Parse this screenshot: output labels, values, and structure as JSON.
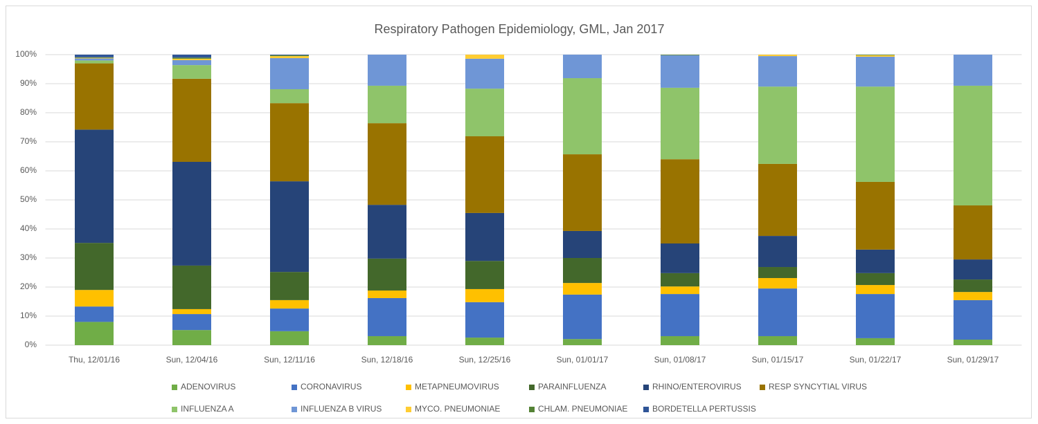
{
  "chart_data": {
    "type": "stacked_bar_100",
    "title": "Respiratory Pathogen Epidemiology, GML, Jan 2017",
    "categories": [
      "Thu, 12/01/16",
      "Sun, 12/04/16",
      "Sun, 12/11/16",
      "Sun, 12/18/16",
      "Sun, 12/25/16",
      "Sun, 01/01/17",
      "Sun, 01/08/17",
      "Sun, 01/15/17",
      "Sun, 01/22/17",
      "Sun, 01/29/17"
    ],
    "series": [
      {
        "name": "ADENOVIRUS",
        "color": "#70ad47",
        "values": [
          8,
          5.2,
          4.8,
          3.1,
          2.6,
          2.1,
          3.1,
          3.1,
          2.4,
          1.9
        ]
      },
      {
        "name": "CORONAVIRUS",
        "color": "#4472c4",
        "values": [
          5.3,
          5.5,
          7.8,
          13.1,
          12.2,
          15.3,
          14.5,
          16.4,
          15.2,
          13.6
        ]
      },
      {
        "name": "METAPNEUMOVIRUS",
        "color": "#ffc000",
        "values": [
          5.7,
          1.7,
          2.9,
          2.6,
          4.5,
          4,
          2.6,
          3.6,
          3.1,
          2.8
        ]
      },
      {
        "name": "PARAINFLUENZA",
        "color": "#43682b",
        "values": [
          16.2,
          15,
          9.7,
          11,
          9.7,
          8.6,
          4.6,
          3.8,
          4.1,
          4.3
        ]
      },
      {
        "name": "RHINO/ENTEROVIRUS",
        "color": "#264478",
        "values": [
          39,
          35.7,
          31.2,
          18.5,
          16.5,
          9.3,
          10.2,
          10.7,
          8.1,
          6.9
        ]
      },
      {
        "name": "RESP SYNCYTIAL VIRUS",
        "color": "#997300",
        "values": [
          22.8,
          28.6,
          26.9,
          28.1,
          26.4,
          26.4,
          29,
          24.8,
          23.3,
          18.6
        ]
      },
      {
        "name": "INFLUENZA A",
        "color": "#8fc46a",
        "values": [
          1,
          4.7,
          4.8,
          12.9,
          16.4,
          26.2,
          24.6,
          26.6,
          32.8,
          41.2
        ]
      },
      {
        "name": "INFLUENZA B VIRUS",
        "color": "#6f96d6",
        "values": [
          0.7,
          1.7,
          10.7,
          10.7,
          10.3,
          8.1,
          11.2,
          10.5,
          10.3,
          10.7
        ]
      },
      {
        "name": "MYCO. PNEUMONIAE",
        "color": "#ffcd33",
        "values": [
          0.2,
          0.5,
          0.7,
          0,
          1.4,
          0,
          0,
          0.5,
          0.5,
          0
        ]
      },
      {
        "name": "CHLAM. PNEUMONIAE",
        "color": "#548235",
        "values": [
          0.2,
          0.4,
          0.3,
          0,
          0,
          0,
          0.2,
          0,
          0.2,
          0
        ]
      },
      {
        "name": "BORDETELLA PERTUSSIS",
        "color": "#2f5597",
        "values": [
          0.9,
          1,
          0.2,
          0,
          0,
          0,
          0,
          0,
          0,
          0
        ]
      }
    ],
    "ylim": [
      0,
      100
    ],
    "yticks": [
      {
        "value": 0,
        "label": "0%"
      },
      {
        "value": 10,
        "label": "10%"
      },
      {
        "value": 20,
        "label": "20%"
      },
      {
        "value": 30,
        "label": "30%"
      },
      {
        "value": 40,
        "label": "40%"
      },
      {
        "value": 50,
        "label": "50%"
      },
      {
        "value": 60,
        "label": "60%"
      },
      {
        "value": 70,
        "label": "70%"
      },
      {
        "value": 80,
        "label": "80%"
      },
      {
        "value": 90,
        "label": "90%"
      },
      {
        "value": 100,
        "label": "100%"
      }
    ],
    "grid": true,
    "legend": "bottom"
  }
}
